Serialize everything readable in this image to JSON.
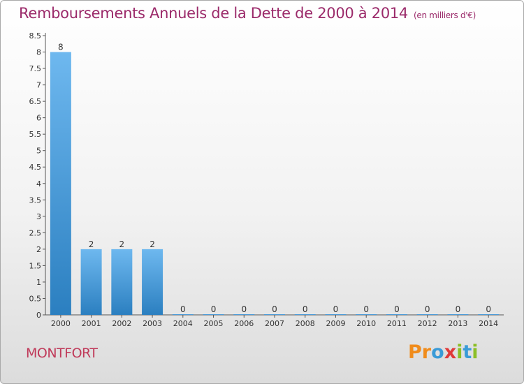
{
  "header": {
    "title": "Remboursements Annuels de la Dette de 2000 à 2014",
    "subtitle": "(en milliers d'€)"
  },
  "footer": {
    "commune": "MONTFORT",
    "logo_text": "Proxiti"
  },
  "colors": {
    "title": "#9b2a6a",
    "bar_light": "#6eb8ef",
    "bar_dark": "#2b7fc0",
    "axis": "#555555",
    "logo": [
      "#f08c1c",
      "#f08c1c",
      "#3a9bd7",
      "#e03a3a",
      "#8cbf26",
      "#3a9bd7",
      "#8cbf26"
    ]
  },
  "chart_data": {
    "type": "bar",
    "categories": [
      "2000",
      "2001",
      "2002",
      "2003",
      "2004",
      "2005",
      "2006",
      "2007",
      "2008",
      "2009",
      "2010",
      "2011",
      "2012",
      "2013",
      "2014"
    ],
    "values": [
      8,
      2,
      2,
      2,
      0,
      0,
      0,
      0,
      0,
      0,
      0,
      0,
      0,
      0,
      0
    ],
    "data_labels": [
      "8",
      "2",
      "2",
      "2",
      "0",
      "0",
      "0",
      "0",
      "0",
      "0",
      "0",
      "0",
      "0",
      "0",
      "0"
    ],
    "yticks": [
      "0",
      "0.5",
      "1",
      "1.5",
      "2",
      "2.5",
      "3",
      "3.5",
      "4",
      "4.5",
      "5",
      "5.5",
      "6",
      "6.5",
      "7",
      "7.5",
      "8",
      "8.5"
    ],
    "ylim": [
      0,
      8.5
    ],
    "xlabel": "",
    "ylabel": "",
    "grid": false
  }
}
